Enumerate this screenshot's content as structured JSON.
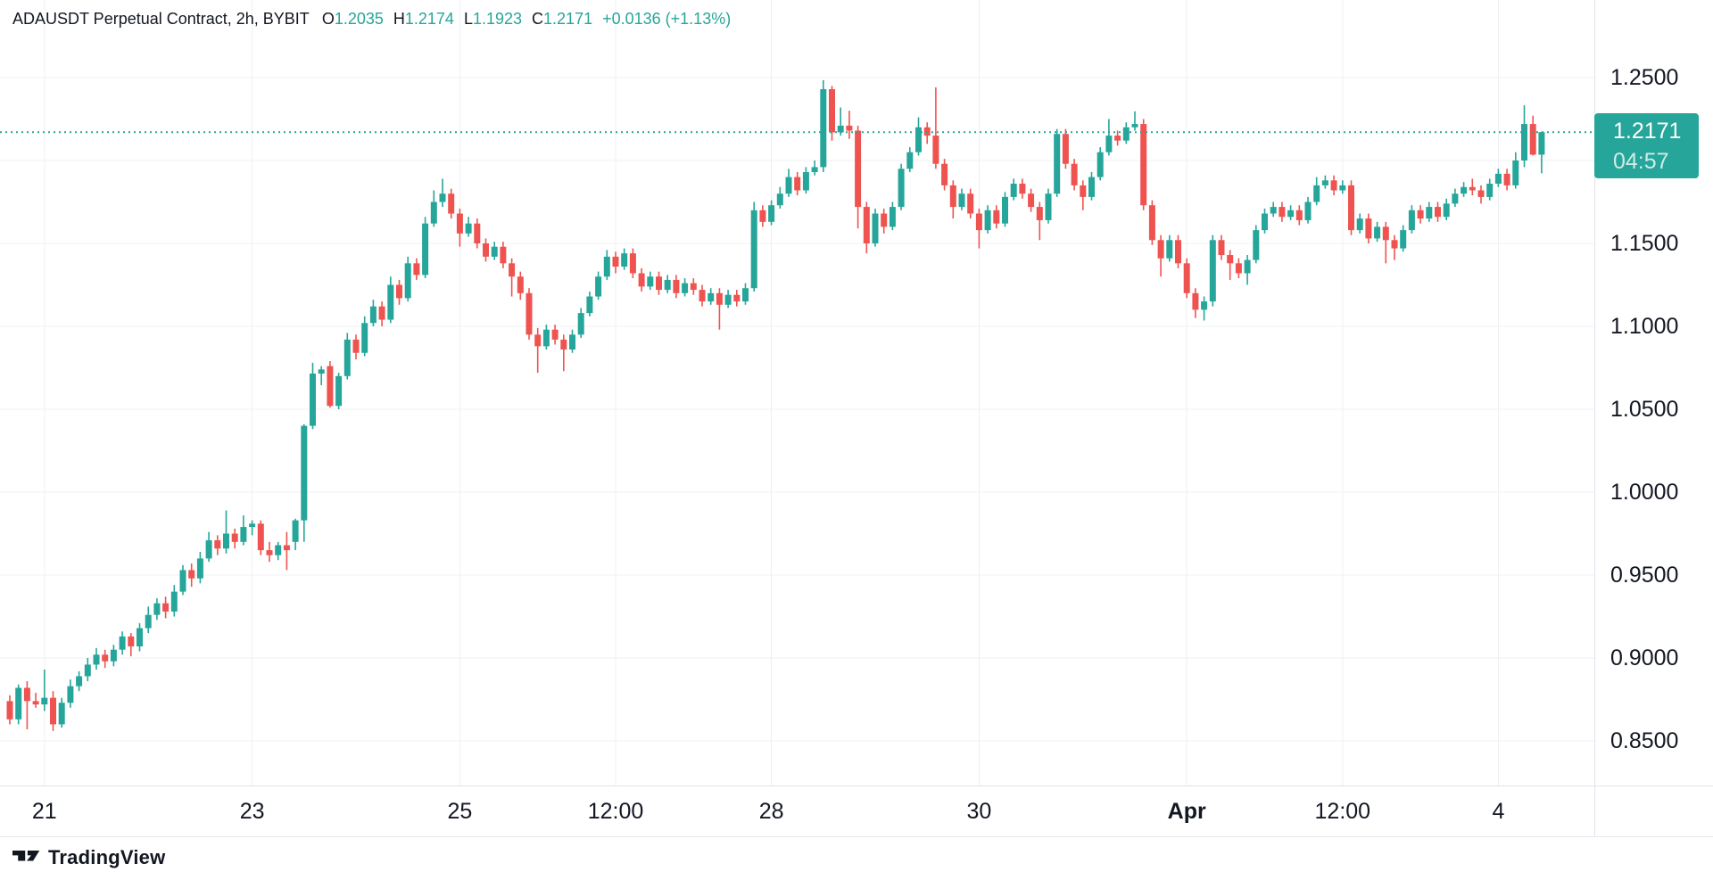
{
  "header": {
    "title": "ADAUSDT Perpetual Contract, 2h, BYBIT",
    "open_label": "O",
    "open_value": "1.2035",
    "high_label": "H",
    "high_value": "1.2174",
    "low_label": "L",
    "low_value": "1.1923",
    "close_label": "C",
    "close_value": "1.2171",
    "change": "+0.0136 (+1.13%)"
  },
  "price_axis": {
    "labels": [
      "1.2500",
      "1.2000",
      "1.1500",
      "1.1000",
      "1.0500",
      "1.0000",
      "0.9500",
      "0.9000",
      "0.8500"
    ],
    "last_price": "1.2171",
    "countdown": "04:57"
  },
  "logo": {
    "text": "TradingView"
  },
  "colors": {
    "up": "#26a69a",
    "down": "#ef5350",
    "badge": "#26a69a",
    "text": "#131722",
    "grid": "#eef0f3",
    "border": "#e0e3eb"
  },
  "chart_data": {
    "type": "candlestick",
    "title": "ADAUSDT Perpetual Contract, 2h, BYBIT",
    "symbol": "ADAUSDT Perpetual Contract",
    "interval": "2h",
    "exchange": "BYBIT",
    "legend_position": "top-left",
    "grid": true,
    "visible_price_range": [
      0.823,
      1.297
    ],
    "price_ticks": [
      1.25,
      1.2,
      1.15,
      1.1,
      1.05,
      1.0,
      0.95,
      0.9,
      0.85
    ],
    "time_ticks": [
      {
        "label": "21",
        "index": 4
      },
      {
        "label": "23",
        "index": 28
      },
      {
        "label": "25",
        "index": 52
      },
      {
        "label": "12:00",
        "index": 70
      },
      {
        "label": "28",
        "index": 88
      },
      {
        "label": "30",
        "index": 112
      },
      {
        "label": "Apr",
        "index": 136,
        "bold": true
      },
      {
        "label": "12:00",
        "index": 154
      },
      {
        "label": "4",
        "index": 172
      }
    ],
    "last_price_line": 1.2171,
    "last_candle": {
      "open": 1.2035,
      "high": 1.2174,
      "low": 1.1923,
      "close": 1.2171,
      "change_abs": "+0.0136",
      "change_pct": "+1.13%"
    },
    "candles": [
      [
        0.874,
        0.8775,
        0.86,
        0.863
      ],
      [
        0.863,
        0.884,
        0.86,
        0.882
      ],
      [
        0.882,
        0.886,
        0.857,
        0.874
      ],
      [
        0.874,
        0.879,
        0.87,
        0.872
      ],
      [
        0.872,
        0.893,
        0.868,
        0.876
      ],
      [
        0.876,
        0.88,
        0.856,
        0.86
      ],
      [
        0.86,
        0.876,
        0.858,
        0.873
      ],
      [
        0.873,
        0.887,
        0.87,
        0.883
      ],
      [
        0.883,
        0.892,
        0.88,
        0.889
      ],
      [
        0.889,
        0.9,
        0.886,
        0.896
      ],
      [
        0.896,
        0.906,
        0.893,
        0.902
      ],
      [
        0.902,
        0.905,
        0.894,
        0.898
      ],
      [
        0.898,
        0.908,
        0.895,
        0.905
      ],
      [
        0.905,
        0.916,
        0.902,
        0.913
      ],
      [
        0.913,
        0.915,
        0.901,
        0.907
      ],
      [
        0.907,
        0.921,
        0.904,
        0.918
      ],
      [
        0.918,
        0.931,
        0.915,
        0.926
      ],
      [
        0.926,
        0.936,
        0.923,
        0.933
      ],
      [
        0.933,
        0.937,
        0.924,
        0.928
      ],
      [
        0.928,
        0.944,
        0.925,
        0.94
      ],
      [
        0.94,
        0.956,
        0.938,
        0.953
      ],
      [
        0.953,
        0.957,
        0.943,
        0.948
      ],
      [
        0.948,
        0.964,
        0.945,
        0.96
      ],
      [
        0.96,
        0.976,
        0.958,
        0.971
      ],
      [
        0.971,
        0.974,
        0.962,
        0.966
      ],
      [
        0.966,
        0.989,
        0.963,
        0.975
      ],
      [
        0.975,
        0.978,
        0.966,
        0.97
      ],
      [
        0.97,
        0.986,
        0.968,
        0.979
      ],
      [
        0.979,
        0.983,
        0.974,
        0.981
      ],
      [
        0.981,
        0.983,
        0.962,
        0.965
      ],
      [
        0.965,
        0.97,
        0.958,
        0.962
      ],
      [
        0.962,
        0.97,
        0.959,
        0.968
      ],
      [
        0.968,
        0.976,
        0.953,
        0.965
      ],
      [
        0.97,
        0.984,
        0.965,
        0.983
      ],
      [
        0.983,
        1.041,
        0.97,
        1.04
      ],
      [
        1.04,
        1.078,
        1.038,
        1.0715
      ],
      [
        1.0715,
        1.076,
        1.0645,
        1.074
      ],
      [
        1.076,
        1.079,
        1.051,
        1.052
      ],
      [
        1.052,
        1.072,
        1.05,
        1.07
      ],
      [
        1.07,
        1.096,
        1.068,
        1.092
      ],
      [
        1.092,
        1.095,
        1.08,
        1.084
      ],
      [
        1.084,
        1.106,
        1.082,
        1.102
      ],
      [
        1.102,
        1.116,
        1.1,
        1.112
      ],
      [
        1.112,
        1.115,
        1.1,
        1.104
      ],
      [
        1.104,
        1.13,
        1.102,
        1.125
      ],
      [
        1.125,
        1.128,
        1.113,
        1.117
      ],
      [
        1.117,
        1.142,
        1.115,
        1.138
      ],
      [
        1.138,
        1.141,
        1.128,
        1.131
      ],
      [
        1.131,
        1.166,
        1.129,
        1.162
      ],
      [
        1.162,
        1.182,
        1.16,
        1.175
      ],
      [
        1.175,
        1.189,
        1.172,
        1.18
      ],
      [
        1.18,
        1.183,
        1.165,
        1.168
      ],
      [
        1.168,
        1.171,
        1.148,
        1.156
      ],
      [
        1.156,
        1.166,
        1.154,
        1.162
      ],
      [
        1.162,
        1.165,
        1.147,
        1.15
      ],
      [
        1.15,
        1.153,
        1.139,
        1.142
      ],
      [
        1.142,
        1.151,
        1.14,
        1.148
      ],
      [
        1.148,
        1.151,
        1.135,
        1.138
      ],
      [
        1.138,
        1.141,
        1.118,
        1.13
      ],
      [
        1.13,
        1.133,
        1.116,
        1.12
      ],
      [
        1.12,
        1.123,
        1.092,
        1.095
      ],
      [
        1.095,
        1.099,
        1.072,
        1.088
      ],
      [
        1.088,
        1.101,
        1.086,
        1.098
      ],
      [
        1.098,
        1.101,
        1.089,
        1.092
      ],
      [
        1.092,
        1.095,
        1.073,
        1.086
      ],
      [
        1.086,
        1.098,
        1.084,
        1.095
      ],
      [
        1.095,
        1.111,
        1.093,
        1.108
      ],
      [
        1.108,
        1.121,
        1.106,
        1.118
      ],
      [
        1.118,
        1.133,
        1.116,
        1.13
      ],
      [
        1.13,
        1.146,
        1.128,
        1.142
      ],
      [
        1.142,
        1.145,
        1.132,
        1.136
      ],
      [
        1.136,
        1.147,
        1.134,
        1.144
      ],
      [
        1.144,
        1.147,
        1.129,
        1.132
      ],
      [
        1.132,
        1.135,
        1.121,
        1.124
      ],
      [
        1.124,
        1.133,
        1.122,
        1.13
      ],
      [
        1.13,
        1.133,
        1.119,
        1.122
      ],
      [
        1.122,
        1.131,
        1.12,
        1.128
      ],
      [
        1.128,
        1.131,
        1.117,
        1.12
      ],
      [
        1.12,
        1.129,
        1.118,
        1.126
      ],
      [
        1.126,
        1.129,
        1.119,
        1.122
      ],
      [
        1.122,
        1.125,
        1.112,
        1.115
      ],
      [
        1.115,
        1.123,
        1.113,
        1.12
      ],
      [
        1.12,
        1.123,
        1.098,
        1.113
      ],
      [
        1.113,
        1.122,
        1.111,
        1.119
      ],
      [
        1.119,
        1.122,
        1.112,
        1.115
      ],
      [
        1.115,
        1.126,
        1.113,
        1.123
      ],
      [
        1.123,
        1.175,
        1.121,
        1.17
      ],
      [
        1.17,
        1.173,
        1.16,
        1.163
      ],
      [
        1.163,
        1.176,
        1.161,
        1.173
      ],
      [
        1.173,
        1.184,
        1.171,
        1.18
      ],
      [
        1.18,
        1.195,
        1.178,
        1.19
      ],
      [
        1.19,
        1.193,
        1.179,
        1.182
      ],
      [
        1.182,
        1.196,
        1.18,
        1.193
      ],
      [
        1.193,
        1.2,
        1.191,
        1.196
      ],
      [
        1.196,
        1.2484,
        1.193,
        1.243
      ],
      [
        1.243,
        1.245,
        1.212,
        1.217
      ],
      [
        1.217,
        1.232,
        1.215,
        1.221
      ],
      [
        1.221,
        1.23,
        1.213,
        1.218
      ],
      [
        1.218,
        1.221,
        1.159,
        1.172
      ],
      [
        1.172,
        1.175,
        1.144,
        1.15
      ],
      [
        1.15,
        1.171,
        1.148,
        1.168
      ],
      [
        1.168,
        1.171,
        1.156,
        1.16
      ],
      [
        1.16,
        1.175,
        1.158,
        1.172
      ],
      [
        1.172,
        1.198,
        1.17,
        1.195
      ],
      [
        1.195,
        1.208,
        1.193,
        1.205
      ],
      [
        1.205,
        1.226,
        1.203,
        1.22
      ],
      [
        1.22,
        1.223,
        1.21,
        1.215
      ],
      [
        1.215,
        1.2441,
        1.195,
        1.198
      ],
      [
        1.198,
        1.201,
        1.182,
        1.185
      ],
      [
        1.185,
        1.188,
        1.165,
        1.172
      ],
      [
        1.172,
        1.183,
        1.17,
        1.18
      ],
      [
        1.18,
        1.183,
        1.165,
        1.168
      ],
      [
        1.168,
        1.171,
        1.147,
        1.158
      ],
      [
        1.158,
        1.173,
        1.156,
        1.17
      ],
      [
        1.17,
        1.173,
        1.159,
        1.162
      ],
      [
        1.162,
        1.181,
        1.16,
        1.178
      ],
      [
        1.178,
        1.189,
        1.176,
        1.186
      ],
      [
        1.186,
        1.189,
        1.177,
        1.18
      ],
      [
        1.18,
        1.183,
        1.169,
        1.172
      ],
      [
        1.172,
        1.175,
        1.152,
        1.164
      ],
      [
        1.164,
        1.183,
        1.162,
        1.18
      ],
      [
        1.18,
        1.219,
        1.178,
        1.216
      ],
      [
        1.216,
        1.219,
        1.195,
        1.198
      ],
      [
        1.198,
        1.201,
        1.182,
        1.185
      ],
      [
        1.185,
        1.188,
        1.17,
        1.178
      ],
      [
        1.178,
        1.193,
        1.176,
        1.19
      ],
      [
        1.19,
        1.208,
        1.188,
        1.205
      ],
      [
        1.205,
        1.225,
        1.203,
        1.215
      ],
      [
        1.215,
        1.218,
        1.209,
        1.212
      ],
      [
        1.212,
        1.223,
        1.21,
        1.22
      ],
      [
        1.22,
        1.2296,
        1.218,
        1.222
      ],
      [
        1.222,
        1.225,
        1.17,
        1.173
      ],
      [
        1.173,
        1.176,
        1.149,
        1.152
      ],
      [
        1.152,
        1.155,
        1.13,
        1.141
      ],
      [
        1.141,
        1.155,
        1.139,
        1.152
      ],
      [
        1.152,
        1.155,
        1.135,
        1.138
      ],
      [
        1.138,
        1.141,
        1.117,
        1.12
      ],
      [
        1.12,
        1.123,
        1.105,
        1.11
      ],
      [
        1.11,
        1.118,
        1.1035,
        1.115
      ],
      [
        1.115,
        1.155,
        1.112,
        1.152
      ],
      [
        1.152,
        1.155,
        1.14,
        1.143
      ],
      [
        1.143,
        1.146,
        1.128,
        1.138
      ],
      [
        1.138,
        1.141,
        1.129,
        1.132
      ],
      [
        1.132,
        1.143,
        1.125,
        1.14
      ],
      [
        1.14,
        1.161,
        1.138,
        1.158
      ],
      [
        1.158,
        1.171,
        1.156,
        1.168
      ],
      [
        1.168,
        1.175,
        1.166,
        1.172
      ],
      [
        1.172,
        1.175,
        1.163,
        1.166
      ],
      [
        1.166,
        1.173,
        1.164,
        1.17
      ],
      [
        1.17,
        1.173,
        1.161,
        1.164
      ],
      [
        1.164,
        1.178,
        1.162,
        1.175
      ],
      [
        1.175,
        1.19,
        1.173,
        1.185
      ],
      [
        1.185,
        1.191,
        1.183,
        1.188
      ],
      [
        1.188,
        1.191,
        1.179,
        1.182
      ],
      [
        1.182,
        1.188,
        1.18,
        1.185
      ],
      [
        1.185,
        1.188,
        1.155,
        1.158
      ],
      [
        1.158,
        1.168,
        1.156,
        1.165
      ],
      [
        1.165,
        1.168,
        1.15,
        1.153
      ],
      [
        1.153,
        1.163,
        1.151,
        1.16
      ],
      [
        1.16,
        1.163,
        1.138,
        1.152
      ],
      [
        1.152,
        1.155,
        1.14,
        1.147
      ],
      [
        1.147,
        1.161,
        1.145,
        1.158
      ],
      [
        1.158,
        1.173,
        1.156,
        1.17
      ],
      [
        1.17,
        1.173,
        1.162,
        1.165
      ],
      [
        1.165,
        1.175,
        1.163,
        1.172
      ],
      [
        1.172,
        1.175,
        1.163,
        1.166
      ],
      [
        1.166,
        1.177,
        1.164,
        1.174
      ],
      [
        1.174,
        1.183,
        1.172,
        1.18
      ],
      [
        1.18,
        1.187,
        1.178,
        1.184
      ],
      [
        1.184,
        1.189,
        1.179,
        1.182
      ],
      [
        1.182,
        1.185,
        1.174,
        1.178
      ],
      [
        1.178,
        1.189,
        1.176,
        1.186
      ],
      [
        1.186,
        1.195,
        1.184,
        1.192
      ],
      [
        1.192,
        1.195,
        1.182,
        1.185
      ],
      [
        1.185,
        1.205,
        1.183,
        1.2
      ],
      [
        1.2,
        1.2333,
        1.196,
        1.222
      ],
      [
        1.222,
        1.227,
        1.203,
        1.2035
      ],
      [
        1.2035,
        1.2174,
        1.1923,
        1.2171
      ]
    ]
  }
}
